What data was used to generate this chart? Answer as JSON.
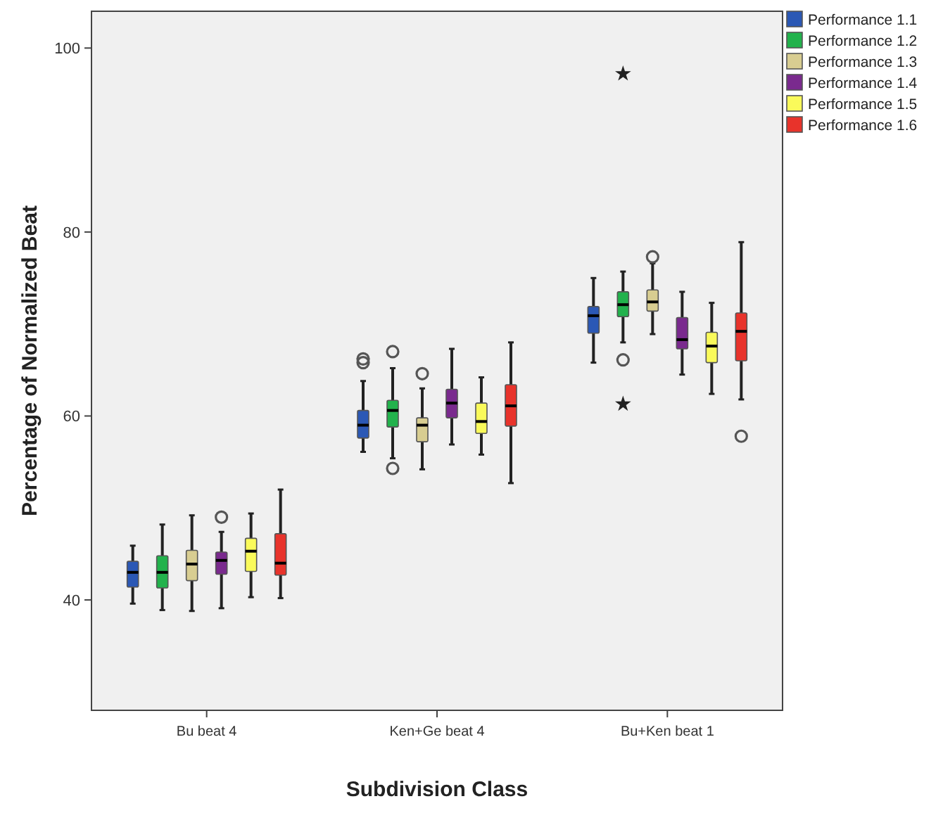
{
  "chart_data": {
    "type": "box",
    "xlabel": "Subdivision Class",
    "ylabel": "Percentage of Normalized Beat",
    "categories": [
      "Bu beat 4",
      "Ken+Ge beat 4",
      "Bu+Ken beat 1"
    ],
    "ylim": [
      28,
      104
    ],
    "yticks": [
      40,
      60,
      80,
      100
    ],
    "grid": false,
    "legend": "top right",
    "series": [
      {
        "name": "Performance 1.1",
        "color": "#2b58b5",
        "boxes": [
          {
            "low": 39.6,
            "q1": 41.4,
            "median": 43.0,
            "q3": 44.2,
            "high": 45.9
          },
          {
            "low": 56.1,
            "q1": 57.6,
            "median": 59.0,
            "q3": 60.6,
            "high": 63.8,
            "outliers": [
              65.8,
              66.2
            ]
          },
          {
            "low": 65.8,
            "q1": 69.0,
            "median": 70.9,
            "q3": 71.9,
            "high": 75.0
          }
        ]
      },
      {
        "name": "Performance 1.2",
        "color": "#22b24c",
        "boxes": [
          {
            "low": 38.9,
            "q1": 41.3,
            "median": 43.0,
            "q3": 44.8,
            "high": 48.2
          },
          {
            "low": 55.4,
            "q1": 58.8,
            "median": 60.6,
            "q3": 61.7,
            "high": 65.2,
            "outliers": [
              67.0,
              54.3
            ]
          },
          {
            "low": 68.0,
            "q1": 70.8,
            "median": 72.1,
            "q3": 73.5,
            "high": 75.7,
            "outliers": [
              97.2,
              66.1,
              61.3
            ]
          }
        ]
      },
      {
        "name": "Performance 1.3",
        "color": "#d8cd91",
        "boxes": [
          {
            "low": 38.8,
            "q1": 42.1,
            "median": 43.9,
            "q3": 45.4,
            "high": 49.2
          },
          {
            "low": 54.2,
            "q1": 57.2,
            "median": 59.0,
            "q3": 59.8,
            "high": 63.0,
            "outliers": [
              64.6
            ]
          },
          {
            "low": 68.9,
            "q1": 71.4,
            "median": 72.4,
            "q3": 73.7,
            "high": 76.6,
            "outliers": [
              77.3
            ]
          }
        ]
      },
      {
        "name": "Performance 1.4",
        "color": "#7a2a8e",
        "boxes": [
          {
            "low": 39.1,
            "q1": 42.8,
            "median": 44.3,
            "q3": 45.2,
            "high": 47.4,
            "outliers": [
              49.0
            ]
          },
          {
            "low": 56.9,
            "q1": 59.8,
            "median": 61.4,
            "q3": 62.9,
            "high": 67.3
          },
          {
            "low": 64.5,
            "q1": 67.3,
            "median": 68.3,
            "q3": 70.7,
            "high": 73.5
          }
        ]
      },
      {
        "name": "Performance 1.5",
        "color": "#fafa5a",
        "boxes": [
          {
            "low": 40.3,
            "q1": 43.1,
            "median": 45.3,
            "q3": 46.7,
            "high": 49.4
          },
          {
            "low": 55.8,
            "q1": 58.1,
            "median": 59.4,
            "q3": 61.4,
            "high": 64.2
          },
          {
            "low": 62.4,
            "q1": 65.8,
            "median": 67.6,
            "q3": 69.1,
            "high": 72.3
          }
        ]
      },
      {
        "name": "Performance 1.6",
        "color": "#e8332b",
        "boxes": [
          {
            "low": 40.2,
            "q1": 42.7,
            "median": 44.0,
            "q3": 47.2,
            "high": 52.0
          },
          {
            "low": 52.7,
            "q1": 58.9,
            "median": 61.1,
            "q3": 63.4,
            "high": 68.0
          },
          {
            "low": 61.8,
            "q1": 66.0,
            "median": 69.2,
            "q3": 71.2,
            "high": 78.9,
            "outliers": [
              57.8
            ]
          }
        ]
      }
    ]
  }
}
